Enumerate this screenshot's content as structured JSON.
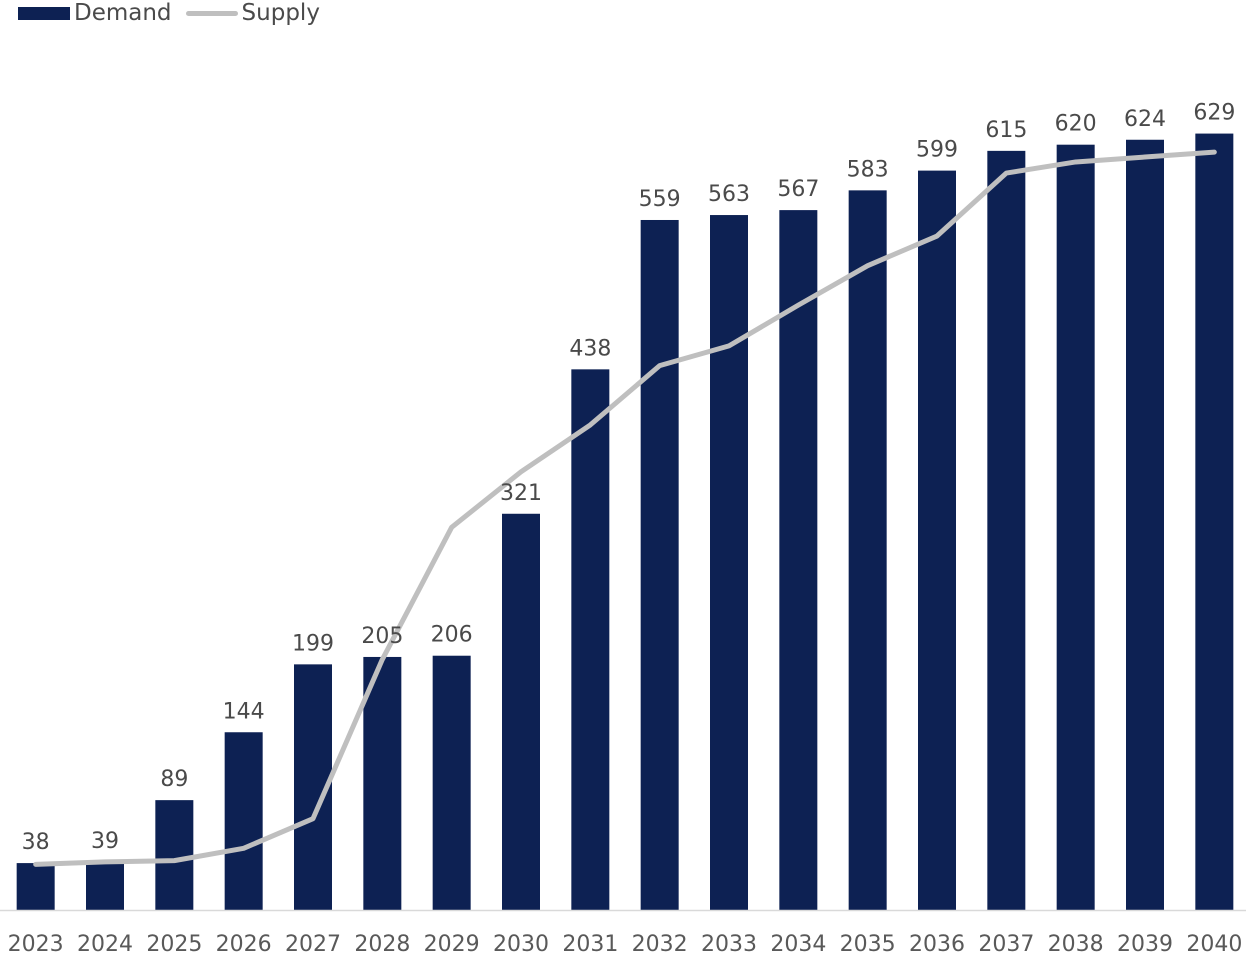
{
  "chart_data": {
    "type": "bar",
    "categories": [
      "2023",
      "2024",
      "2025",
      "2026",
      "2027",
      "2028",
      "2029",
      "2030",
      "2031",
      "2032",
      "2033",
      "2034",
      "2035",
      "2036",
      "2037",
      "2038",
      "2039",
      "2040"
    ],
    "series": [
      {
        "name": "Demand",
        "type": "bar",
        "values": [
          38,
          39,
          89,
          144,
          199,
          205,
          206,
          321,
          438,
          559,
          563,
          567,
          583,
          599,
          615,
          620,
          624,
          629
        ],
        "color": "#0d2153",
        "data_labels": [
          "38",
          "39",
          "89",
          "144",
          "199",
          "205",
          "206",
          "321",
          "438",
          "559",
          "563",
          "567",
          "583",
          "599",
          "615",
          "620",
          "624",
          "629"
        ]
      },
      {
        "name": "Supply",
        "type": "line",
        "values": [
          37,
          39,
          40,
          50,
          74,
          203,
          310,
          355,
          393,
          441,
          457,
          490,
          522,
          546,
          597,
          606,
          610,
          614
        ],
        "color": "#bfbfbf"
      }
    ],
    "title": "",
    "xlabel": "",
    "ylabel": "",
    "ylim": [
      0,
      640
    ],
    "grid": false,
    "legend": "top-left"
  }
}
